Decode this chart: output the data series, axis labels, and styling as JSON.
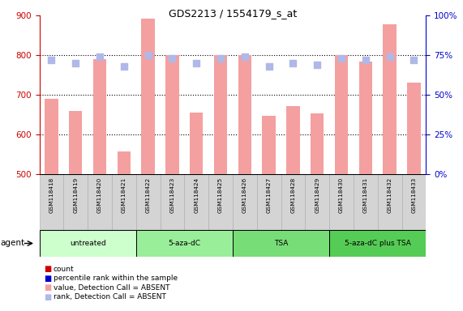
{
  "title": "GDS2213 / 1554179_s_at",
  "samples": [
    "GSM118418",
    "GSM118419",
    "GSM118420",
    "GSM118421",
    "GSM118422",
    "GSM118423",
    "GSM118424",
    "GSM118425",
    "GSM118426",
    "GSM118427",
    "GSM118428",
    "GSM118429",
    "GSM118430",
    "GSM118431",
    "GSM118432",
    "GSM118433"
  ],
  "bar_values": [
    690,
    660,
    790,
    557,
    893,
    800,
    655,
    800,
    800,
    647,
    672,
    653,
    800,
    785,
    877,
    730
  ],
  "rank_values": [
    72,
    70,
    74,
    68,
    75,
    73,
    70,
    73,
    74,
    68,
    70,
    69,
    73,
    72,
    74,
    72
  ],
  "ylim_left": [
    500,
    900
  ],
  "ylim_right": [
    0,
    100
  ],
  "yticks_left": [
    500,
    600,
    700,
    800,
    900
  ],
  "yticks_right": [
    0,
    25,
    50,
    75,
    100
  ],
  "ytick_labels_right": [
    "0%",
    "25%",
    "50%",
    "75%",
    "100%"
  ],
  "bar_color_absent": "#f4a0a0",
  "rank_color_absent": "#b0b8e8",
  "bar_color_present": "#cc0000",
  "rank_color_present": "#0000cc",
  "agent_groups": [
    {
      "label": "untreated",
      "start": 0,
      "end": 3,
      "color": "#ccffcc"
    },
    {
      "label": "5-aza-dC",
      "start": 4,
      "end": 7,
      "color": "#99ee99"
    },
    {
      "label": "TSA",
      "start": 8,
      "end": 11,
      "color": "#77dd77"
    },
    {
      "label": "5-aza-dC plus TSA",
      "start": 12,
      "end": 15,
      "color": "#55cc55"
    }
  ],
  "legend_labels": [
    "count",
    "percentile rank within the sample",
    "value, Detection Call = ABSENT",
    "rank, Detection Call = ABSENT"
  ],
  "legend_colors": [
    "#cc0000",
    "#0000cc",
    "#f4a0a0",
    "#b0b8e8"
  ],
  "bar_width": 0.55,
  "rank_marker_size": 40,
  "axis_color_left": "#cc0000",
  "axis_color_right": "#0000cc",
  "title_fontsize": 9,
  "agent_label": "agent"
}
